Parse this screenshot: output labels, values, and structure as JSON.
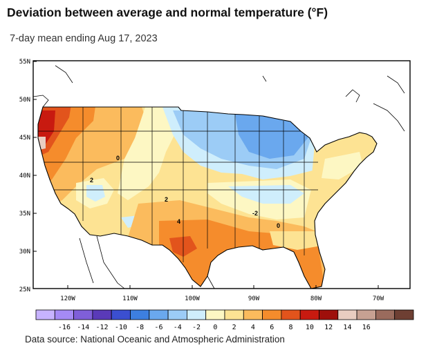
{
  "header": {
    "title": "Deviation between average and normal temperature (°F)",
    "subtitle": "7-day mean ending Aug 17, 2023"
  },
  "map": {
    "latitude_labels": [
      "55N",
      "50N",
      "45N",
      "40N",
      "35N",
      "30N",
      "25N"
    ],
    "longitude_labels": [
      "120W",
      "110W",
      "100W",
      "90W",
      "80W",
      "70W"
    ],
    "contour_labels": [
      "0",
      "2",
      "2",
      "4",
      "-2",
      "0"
    ],
    "region": "Contiguous United States"
  },
  "legend": {
    "labels": [
      "-16",
      "-14",
      "-12",
      "-10",
      "-8",
      "-6",
      "-4",
      "-2",
      "0",
      "2",
      "4",
      "6",
      "8",
      "10",
      "12",
      "14",
      "16"
    ],
    "colors": [
      "#c7b3ff",
      "#a58af5",
      "#7f5fd9",
      "#5a3ab8",
      "#3b4fd0",
      "#3d7fe0",
      "#6aa8ee",
      "#9cccf6",
      "#cfeefc",
      "#fdf7c3",
      "#fde393",
      "#fbbb5d",
      "#f58c2c",
      "#e2541c",
      "#c81a10",
      "#9e0f0b",
      "#e9cdc1",
      "#c7a192",
      "#9a6b5d",
      "#6e3f33"
    ]
  },
  "footer": {
    "source": "Data source: National Oceanic and Atmospheric Administration"
  }
}
